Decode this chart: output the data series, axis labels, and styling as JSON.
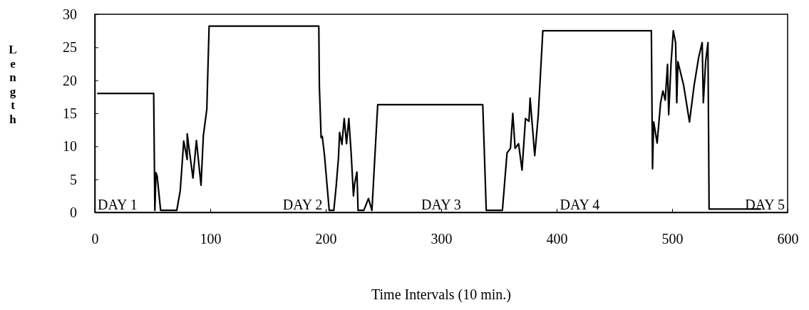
{
  "chart_data": {
    "type": "line",
    "xlabel": "Time Intervals (10 min.)",
    "ylabel": "Length",
    "xlim": [
      0,
      600
    ],
    "xticks": [
      0,
      100,
      200,
      300,
      400,
      500,
      600
    ],
    "ylim": [
      0,
      30
    ],
    "yticks": [
      0,
      5,
      10,
      15,
      20,
      25,
      30
    ],
    "grid": false,
    "marker": "none",
    "line_style": "solid",
    "series": [
      {
        "color": "#000000",
        "x": [
          2,
          51,
          52,
          53,
          54,
          57,
          71,
          74,
          77,
          80,
          80,
          85,
          88,
          92,
          94,
          97,
          99,
          194,
          194.5,
          196,
          197,
          199,
          203,
          207,
          209,
          211,
          212,
          214,
          216,
          218,
          220,
          222,
          224,
          225,
          227,
          228,
          233,
          237,
          240,
          245,
          336,
          339,
          353,
          357,
          360,
          362,
          364,
          367,
          370,
          373,
          376,
          377,
          381,
          384,
          388,
          482,
          483,
          484,
          487,
          490,
          492,
          494,
          496,
          497,
          499,
          501,
          503,
          504,
          505,
          510,
          515,
          519,
          523,
          526,
          527,
          529,
          531,
          532,
          577
        ],
        "values": [
          18,
          18,
          0.3,
          6,
          5.5,
          0.3,
          0.3,
          3.3,
          10.8,
          8,
          11.9,
          5.2,
          10.9,
          4.1,
          11.6,
          15.6,
          28.2,
          28.2,
          19,
          11.3,
          11.5,
          8.5,
          0.3,
          0.3,
          3.9,
          8.2,
          12.1,
          10.3,
          14.2,
          10.4,
          14.2,
          9,
          2.5,
          4.3,
          6.1,
          0.3,
          0.3,
          2.1,
          0.3,
          16.3,
          16.3,
          0.3,
          0.3,
          9,
          9.7,
          15,
          9.7,
          10.4,
          6.4,
          14.2,
          13.8,
          17.3,
          8.6,
          14.6,
          27.5,
          27.5,
          6.6,
          13.7,
          10.5,
          16.6,
          18.4,
          17,
          22.4,
          14.8,
          22.4,
          27.5,
          25.7,
          16.6,
          22.8,
          19.2,
          13.7,
          19.2,
          23.5,
          25.7,
          16.6,
          22.8,
          25.7,
          0.5,
          0.5
        ]
      }
    ],
    "annotations": [
      "DAY 1",
      "DAY 2",
      "DAY 3",
      "DAY 4",
      "DAY 5"
    ]
  }
}
